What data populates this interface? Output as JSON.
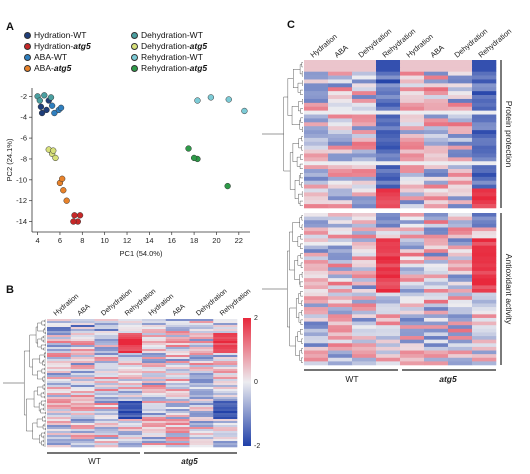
{
  "panels": {
    "a": "A",
    "b": "B",
    "c": "C"
  },
  "legend": [
    {
      "pre": "Hydration-",
      "post": "WT",
      "italic": false,
      "color": "#1f3e7a"
    },
    {
      "pre": "Hydration-",
      "post": "atg5",
      "italic": true,
      "color": "#c62828"
    },
    {
      "pre": "ABA-",
      "post": "WT",
      "italic": false,
      "color": "#2f7fbf"
    },
    {
      "pre": "ABA-",
      "post": "atg5",
      "italic": true,
      "color": "#e8822a"
    },
    {
      "pre": "Dehydration-",
      "post": "WT",
      "italic": false,
      "color": "#4a9fa0"
    },
    {
      "pre": "Dehydration-",
      "post": "atg5",
      "italic": true,
      "color": "#d7e07a"
    },
    {
      "pre": "Rehydration-",
      "post": "WT",
      "italic": false,
      "color": "#7ccbd6"
    },
    {
      "pre": "Rehydration-",
      "post": "atg5",
      "italic": true,
      "color": "#2e9a48"
    }
  ],
  "chart_data": [
    {
      "type": "scatter",
      "xlabel": "PC1 (54.0%)",
      "ylabel": "PC2 (24.1%)",
      "xlim": [
        3.5,
        23
      ],
      "ylim": [
        -15,
        -1.2
      ],
      "xticks": [
        4,
        6,
        8,
        10,
        12,
        14,
        16,
        18,
        20,
        22
      ],
      "yticks": [
        -2,
        -4,
        -6,
        -8,
        -10,
        -12,
        -14
      ],
      "series": [
        {
          "name": "Hydration-WT",
          "color": "#1f3e7a",
          "points": [
            [
              4.3,
              -3.0
            ],
            [
              4.8,
              -3.3
            ],
            [
              5.0,
              -2.4
            ],
            [
              4.4,
              -3.6
            ]
          ]
        },
        {
          "name": "Hydration-atg5",
          "color": "#c62828",
          "points": [
            [
              7.3,
              -13.4
            ],
            [
              7.6,
              -14.0
            ],
            [
              7.8,
              -13.4
            ],
            [
              7.2,
              -14.0
            ]
          ]
        },
        {
          "name": "ABA-WT",
          "color": "#2f7fbf",
          "points": [
            [
              5.5,
              -3.6
            ],
            [
              5.9,
              -3.3
            ],
            [
              5.3,
              -2.9
            ],
            [
              6.1,
              -3.1
            ]
          ]
        },
        {
          "name": "ABA-atg5",
          "color": "#e8822a",
          "points": [
            [
              6.0,
              -10.3
            ],
            [
              6.3,
              -11.0
            ],
            [
              6.6,
              -12.0
            ],
            [
              6.2,
              -9.9
            ]
          ]
        },
        {
          "name": "Dehydration-WT",
          "color": "#4a9fa0",
          "points": [
            [
              4.0,
              -2.0
            ],
            [
              4.6,
              -1.9
            ],
            [
              5.2,
              -2.1
            ],
            [
              4.2,
              -2.4
            ]
          ]
        },
        {
          "name": "Dehydration-atg5",
          "color": "#d7e07a",
          "points": [
            [
              5.0,
              -7.1
            ],
            [
              5.3,
              -7.5
            ],
            [
              5.6,
              -7.9
            ],
            [
              5.4,
              -7.2
            ]
          ]
        },
        {
          "name": "Rehydration-WT",
          "color": "#7ccbd6",
          "points": [
            [
              19.5,
              -2.1
            ],
            [
              21.1,
              -2.3
            ],
            [
              22.5,
              -3.4
            ],
            [
              18.3,
              -2.4
            ]
          ]
        },
        {
          "name": "Rehydration-atg5",
          "color": "#2e9a48",
          "points": [
            [
              17.5,
              -7.0
            ],
            [
              18.3,
              -8.0
            ],
            [
              21.0,
              -10.6
            ],
            [
              18.0,
              -7.9
            ]
          ]
        }
      ]
    },
    {
      "type": "heatmap",
      "columns": [
        "Hydration",
        "ABA",
        "Dehydration",
        "Rehydration",
        "Hydration",
        "ABA",
        "Dehydration",
        "Rehydration"
      ],
      "groups": [
        "WT",
        "atg5"
      ],
      "colorbar": {
        "max": "2",
        "mid": "0",
        "min": "-2",
        "high": "#e8283c",
        "low": "#1f3fa8"
      }
    },
    {
      "type": "heatmap",
      "columns": [
        "Hydration",
        "ABA",
        "Dehydration",
        "Rehydration",
        "Hydration",
        "ABA",
        "Dehydration",
        "Rehydration"
      ],
      "groups": [
        "WT",
        "atg5"
      ],
      "row_groups": [
        "Protein protection",
        "Antioxidant activity"
      ]
    }
  ]
}
